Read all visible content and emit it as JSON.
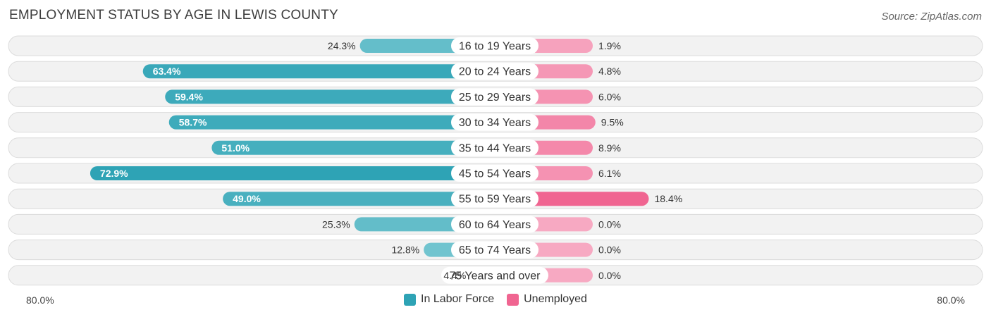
{
  "title": "EMPLOYMENT STATUS BY AGE IN LEWIS COUNTY",
  "source": "Source: ZipAtlas.com",
  "colors": {
    "labor_force": "#2ea3b5",
    "labor_force_light": "#7fcbd4",
    "unemployed": "#f06591",
    "unemployed_light": "#f7a9c2"
  },
  "axis": {
    "left_label": "80.0%",
    "right_label": "80.0%"
  },
  "legend": {
    "labor_force": "In Labor Force",
    "unemployed": "Unemployed"
  },
  "chart_data": {
    "type": "bar",
    "orientation": "diverging-horizontal",
    "categories": [
      "16 to 19 Years",
      "20 to 24 Years",
      "25 to 29 Years",
      "30 to 34 Years",
      "35 to 44 Years",
      "45 to 54 Years",
      "55 to 59 Years",
      "60 to 64 Years",
      "65 to 74 Years",
      "75 Years and over"
    ],
    "series": [
      {
        "name": "In Labor Force",
        "values": [
          24.3,
          63.4,
          59.4,
          58.7,
          51.0,
          72.9,
          49.0,
          25.3,
          12.8,
          4.4
        ],
        "labels": [
          "24.3%",
          "63.4%",
          "59.4%",
          "58.7%",
          "51.0%",
          "72.9%",
          "49.0%",
          "25.3%",
          "12.8%",
          "4.4%"
        ]
      },
      {
        "name": "Unemployed",
        "values": [
          1.9,
          4.8,
          6.0,
          9.5,
          8.9,
          6.1,
          18.4,
          0.0,
          0.0,
          0.0
        ],
        "labels": [
          "1.9%",
          "4.8%",
          "6.0%",
          "9.5%",
          "8.9%",
          "6.1%",
          "18.4%",
          "0.0%",
          "0.0%",
          "0.0%"
        ]
      }
    ],
    "xlim": [
      -80,
      80
    ]
  }
}
